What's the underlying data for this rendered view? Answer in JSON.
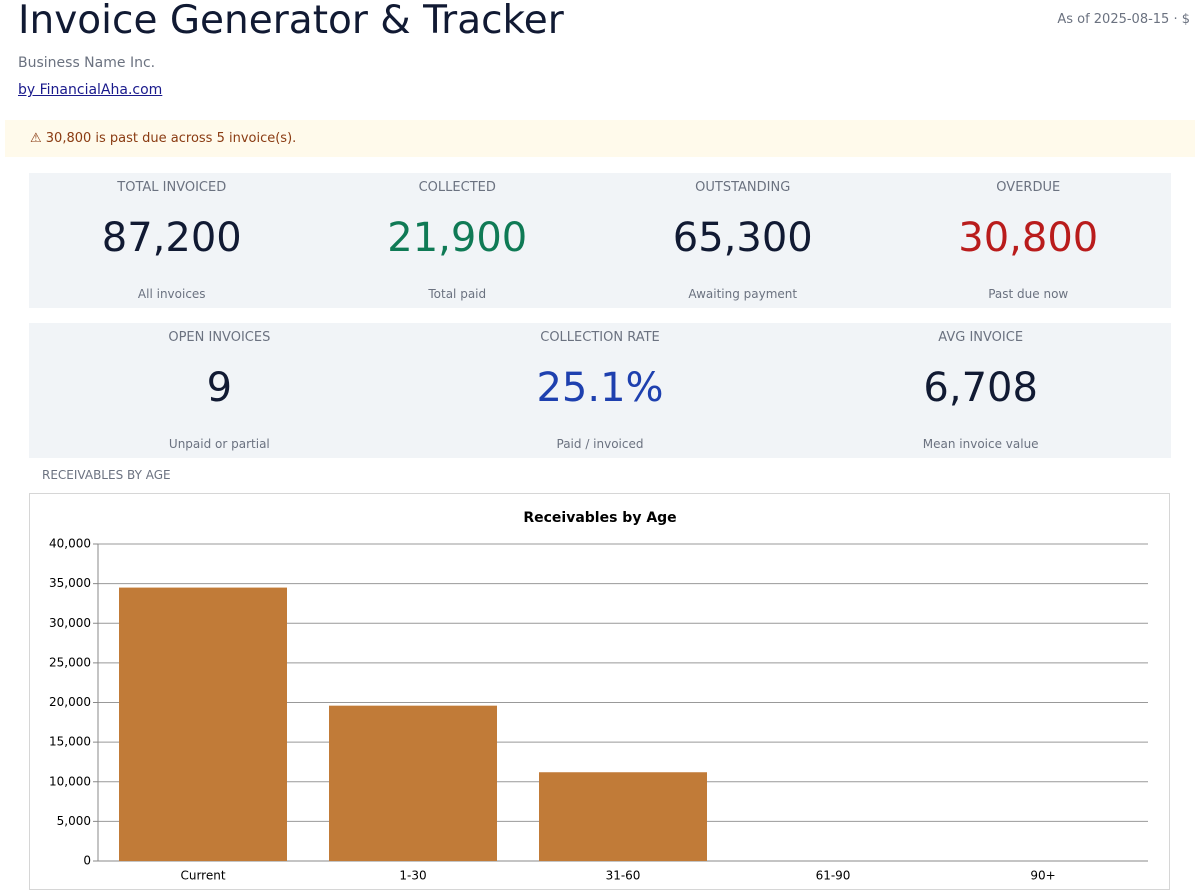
{
  "header": {
    "title": "Invoice Generator & Tracker",
    "business": "Business Name Inc.",
    "link": "by FinancialAha.com",
    "as_of": "As of 2025-08-15 · $"
  },
  "alert": "⚠  30,800 is past due across 5 invoice(s).",
  "kpis": [
    [
      {
        "label": "TOTAL INVOICED",
        "value": "87,200",
        "note": "All invoices"
      },
      {
        "label": "COLLECTED",
        "value": "21,900",
        "note": "Total paid"
      },
      {
        "label": "OUTSTANDING",
        "value": "65,300",
        "note": "Awaiting payment"
      },
      {
        "label": "OVERDUE",
        "value": "30,800",
        "note": "Past due now"
      }
    ],
    [
      {
        "label": "OPEN INVOICES",
        "value": "9",
        "note": "Unpaid or partial"
      },
      {
        "label": "COLLECTION RATE",
        "value": "25.1%",
        "note": "Paid / invoiced"
      },
      {
        "label": "AVG INVOICE",
        "value": "6,708",
        "note": "Mean invoice value"
      }
    ]
  ],
  "section_label": "RECEIVABLES BY AGE",
  "chart_data": {
    "type": "bar",
    "title": "Receivables by Age",
    "categories": [
      "Current",
      "1-30",
      "31-60",
      "61-90",
      "90+"
    ],
    "values": [
      34500,
      19600,
      11200,
      0,
      0
    ],
    "color": "#c17b38",
    "ylim": [
      0,
      40000
    ],
    "yticks": [
      0,
      {
        "value": 5000,
        "label": "5,000"
      },
      {
        "value": 10000,
        "label": "10,000"
      },
      {
        "value": 15000,
        "label": "15,000"
      },
      {
        "value": 20000,
        "label": "20,000"
      },
      {
        "value": 25000,
        "label": "25,000"
      },
      {
        "value": 30000,
        "label": "30,000"
      },
      {
        "value": 35000,
        "label": "35,000"
      },
      {
        "value": 40000,
        "label": "40,000"
      }
    ],
    "grid": true
  }
}
